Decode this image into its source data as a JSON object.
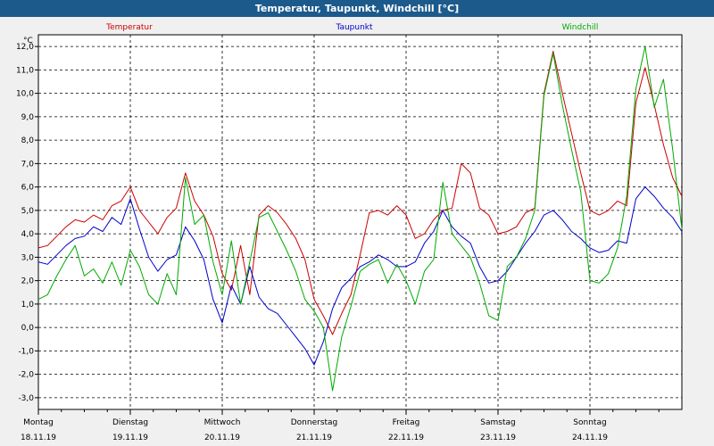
{
  "window": {
    "title": "Temperatur, Taupunkt, Windchill [°C]"
  },
  "chart_data": {
    "type": "line",
    "title": "Temperatur, Taupunkt, Windchill [°C]",
    "ylabel": "°C",
    "ylim": [
      -3.5,
      12.5
    ],
    "yticks": [
      -3,
      -2,
      -1,
      0,
      1,
      2,
      3,
      4,
      5,
      6,
      7,
      8,
      9,
      10,
      11,
      12
    ],
    "ytick_labels": [
      "-3,0",
      "-2,0",
      "-1,0",
      "0,0",
      "1,0",
      "2,0",
      "3,0",
      "4,0",
      "5,0",
      "6,0",
      "7,0",
      "8,0",
      "9,0",
      "10,0",
      "11,0",
      "12,0"
    ],
    "xlim": [
      0,
      7.0
    ],
    "day_labels": [
      "Montag",
      "Dienstag",
      "Mittwoch",
      "Donnerstag",
      "Freitag",
      "Samstag",
      "Sonntag"
    ],
    "date_labels": [
      "18.11.19",
      "19.11.19",
      "20.11.19",
      "21.11.19",
      "22.11.19",
      "23.11.19",
      "24.11.19"
    ],
    "grid": true,
    "legend_placement": "top",
    "series": [
      {
        "name": "Temperatur",
        "color": "#cc0000",
        "x": [
          0,
          0.1,
          0.2,
          0.3,
          0.4,
          0.5,
          0.6,
          0.7,
          0.8,
          0.9,
          1.0,
          1.1,
          1.2,
          1.3,
          1.4,
          1.5,
          1.6,
          1.7,
          1.8,
          1.9,
          2.0,
          2.1,
          2.2,
          2.3,
          2.4,
          2.5,
          2.6,
          2.7,
          2.8,
          2.9,
          3.0,
          3.1,
          3.2,
          3.3,
          3.4,
          3.5,
          3.6,
          3.7,
          3.8,
          3.9,
          4.0,
          4.1,
          4.2,
          4.3,
          4.4,
          4.5,
          4.6,
          4.7,
          4.8,
          4.9,
          5.0,
          5.1,
          5.2,
          5.3,
          5.4,
          5.5,
          5.6,
          5.7,
          5.8,
          5.9,
          6.0,
          6.1,
          6.2,
          6.3,
          6.4,
          6.5,
          6.6,
          6.7,
          6.8,
          6.9,
          7.0
        ],
        "values": [
          3.4,
          3.5,
          3.9,
          4.3,
          4.6,
          4.5,
          4.8,
          4.6,
          5.2,
          5.4,
          6.0,
          5.0,
          4.5,
          4.0,
          4.7,
          5.1,
          6.6,
          5.4,
          4.8,
          3.9,
          2.3,
          1.6,
          3.5,
          1.4,
          4.8,
          5.2,
          4.9,
          4.4,
          3.8,
          2.9,
          1.2,
          0.5,
          -0.3,
          0.6,
          1.4,
          3.1,
          4.9,
          5.0,
          4.8,
          5.2,
          4.8,
          3.8,
          4.0,
          4.6,
          5.0,
          5.1,
          7.0,
          6.6,
          5.1,
          4.8,
          4.0,
          4.1,
          4.3,
          4.9,
          5.1,
          10.0,
          11.8,
          10.0,
          8.3,
          6.6,
          5.0,
          4.8,
          5.0,
          5.4,
          5.2,
          9.6,
          11.1,
          9.5,
          7.8,
          6.4,
          5.6
        ]
      },
      {
        "name": "Taupunkt",
        "color": "#0000cc",
        "x": [
          0,
          0.1,
          0.2,
          0.3,
          0.4,
          0.5,
          0.6,
          0.7,
          0.8,
          0.9,
          1.0,
          1.1,
          1.2,
          1.3,
          1.4,
          1.5,
          1.6,
          1.7,
          1.8,
          1.9,
          2.0,
          2.1,
          2.2,
          2.3,
          2.4,
          2.5,
          2.6,
          2.7,
          2.8,
          2.9,
          3.0,
          3.1,
          3.2,
          3.3,
          3.4,
          3.5,
          3.6,
          3.7,
          3.8,
          3.9,
          4.0,
          4.1,
          4.2,
          4.3,
          4.4,
          4.5,
          4.6,
          4.7,
          4.8,
          4.9,
          5.0,
          5.1,
          5.2,
          5.3,
          5.4,
          5.5,
          5.6,
          5.7,
          5.8,
          5.9,
          6.0,
          6.1,
          6.2,
          6.3,
          6.4,
          6.5,
          6.6,
          6.7,
          6.8,
          6.9,
          7.0
        ],
        "values": [
          2.8,
          2.7,
          3.1,
          3.5,
          3.8,
          3.9,
          4.3,
          4.1,
          4.7,
          4.4,
          5.5,
          4.2,
          3.0,
          2.4,
          2.9,
          3.1,
          4.3,
          3.7,
          2.9,
          1.2,
          0.2,
          1.8,
          1.0,
          2.6,
          1.3,
          0.8,
          0.6,
          0.1,
          -0.4,
          -0.9,
          -1.6,
          -0.6,
          0.8,
          1.7,
          2.1,
          2.6,
          2.8,
          3.1,
          2.9,
          2.6,
          2.6,
          2.8,
          3.6,
          4.1,
          5.0,
          4.3,
          3.9,
          3.6,
          2.6,
          1.9,
          2.0,
          2.4,
          3.0,
          3.6,
          4.1,
          4.8,
          5.0,
          4.6,
          4.1,
          3.8,
          3.4,
          3.2,
          3.3,
          3.7,
          3.6,
          5.5,
          6.0,
          5.6,
          5.1,
          4.7,
          4.1
        ]
      },
      {
        "name": "Windchill",
        "color": "#00aa00",
        "x": [
          0,
          0.1,
          0.2,
          0.3,
          0.4,
          0.5,
          0.6,
          0.7,
          0.8,
          0.9,
          1.0,
          1.1,
          1.2,
          1.3,
          1.4,
          1.5,
          1.6,
          1.7,
          1.8,
          1.9,
          2.0,
          2.1,
          2.2,
          2.3,
          2.4,
          2.5,
          2.6,
          2.7,
          2.8,
          2.9,
          3.0,
          3.1,
          3.2,
          3.3,
          3.4,
          3.5,
          3.6,
          3.7,
          3.8,
          3.9,
          4.0,
          4.1,
          4.2,
          4.3,
          4.4,
          4.5,
          4.6,
          4.7,
          4.8,
          4.9,
          5.0,
          5.1,
          5.2,
          5.3,
          5.4,
          5.5,
          5.6,
          5.7,
          5.8,
          5.9,
          6.0,
          6.1,
          6.2,
          6.3,
          6.4,
          6.5,
          6.6,
          6.7,
          6.8,
          6.9,
          7.0
        ],
        "values": [
          1.2,
          1.4,
          2.2,
          2.9,
          3.5,
          2.2,
          2.5,
          1.9,
          2.8,
          1.8,
          3.3,
          2.6,
          1.4,
          1.0,
          2.3,
          1.4,
          6.4,
          4.4,
          4.8,
          2.8,
          1.4,
          3.7,
          1.0,
          2.8,
          4.7,
          4.9,
          4.1,
          3.3,
          2.4,
          1.2,
          0.7,
          0.0,
          -2.7,
          -0.4,
          0.9,
          2.4,
          2.7,
          2.9,
          1.9,
          2.7,
          2.0,
          1.0,
          2.4,
          2.9,
          6.2,
          4.0,
          3.5,
          3.0,
          1.9,
          0.5,
          0.3,
          2.6,
          3.0,
          3.8,
          5.0,
          9.9,
          11.7,
          9.5,
          7.6,
          5.8,
          2.0,
          1.9,
          2.3,
          3.4,
          5.6,
          10.2,
          12.0,
          9.4,
          10.6,
          7.6,
          4.2
        ]
      }
    ]
  }
}
